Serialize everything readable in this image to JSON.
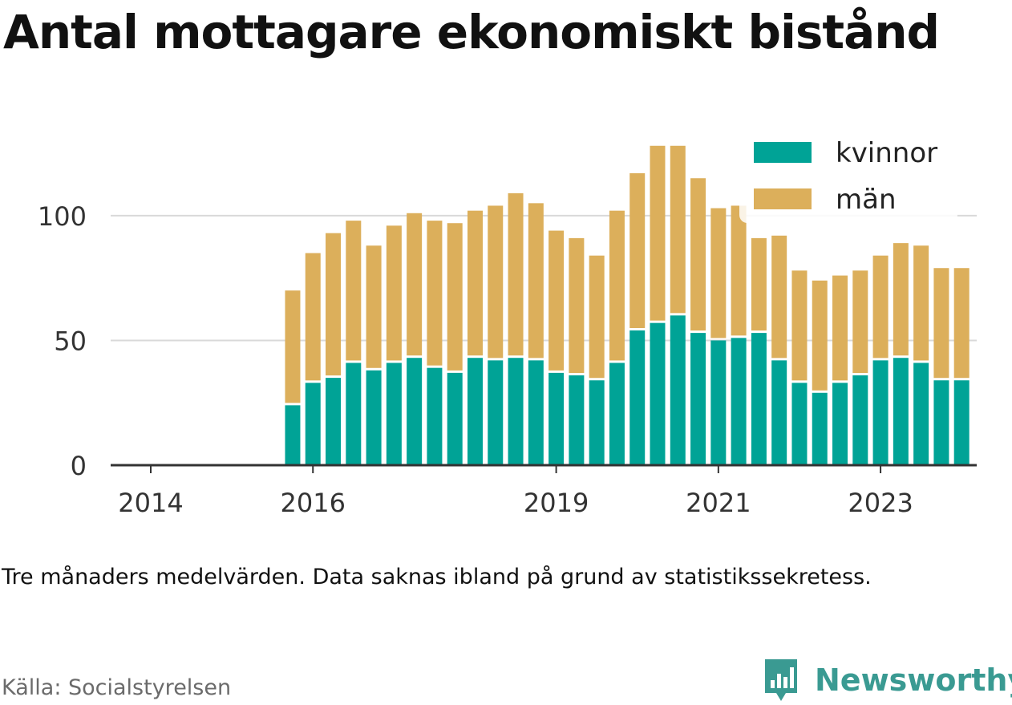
{
  "title": "Antal mottagare ekonomiskt bistånd",
  "note": "Tre månaders medelvärden. Data saknas ibland på grund av statistikssekretess.",
  "source": "Källa: Socialstyrelsen",
  "brand": {
    "name": "Newsworthy",
    "icon": "newsworthy-logo-icon",
    "color": "#3a9a92"
  },
  "colors": {
    "kvinnor": "#00a396",
    "man": "#dcaf5b",
    "axis": "#333333",
    "grid": "#d9d9d9"
  },
  "chart_data": {
    "type": "bar",
    "stacked": true,
    "x_unit": "quarter",
    "x": [
      "2015-Q4",
      "2016-Q1",
      "2016-Q2",
      "2016-Q3",
      "2016-Q4",
      "2017-Q1",
      "2017-Q2",
      "2017-Q3",
      "2017-Q4",
      "2018-Q1",
      "2018-Q2",
      "2018-Q3",
      "2018-Q4",
      "2019-Q1",
      "2019-Q2",
      "2019-Q3",
      "2019-Q4",
      "2020-Q1",
      "2020-Q2",
      "2020-Q3",
      "2020-Q4",
      "2021-Q1",
      "2021-Q2",
      "2021-Q3",
      "2021-Q4",
      "2022-Q1",
      "2022-Q2",
      "2022-Q3",
      "2022-Q4",
      "2023-Q1",
      "2023-Q2",
      "2023-Q3",
      "2023-Q4",
      "2024-Q1"
    ],
    "series": [
      {
        "name": "kvinnor",
        "values": [
          24,
          33,
          35,
          41,
          38,
          41,
          43,
          39,
          37,
          43,
          42,
          43,
          42,
          37,
          36,
          34,
          41,
          54,
          57,
          60,
          53,
          50,
          51,
          53,
          42,
          33,
          29,
          33,
          36,
          42,
          43,
          41,
          34,
          34
        ]
      },
      {
        "name": "män",
        "values": [
          46,
          52,
          58,
          57,
          50,
          55,
          58,
          59,
          60,
          59,
          62,
          66,
          63,
          57,
          55,
          50,
          61,
          63,
          71,
          68,
          62,
          53,
          53,
          38,
          50,
          45,
          45,
          43,
          42,
          42,
          46,
          47,
          45,
          45
        ]
      }
    ],
    "xticks": [
      "2014",
      "2016",
      "2019",
      "2021",
      "2023"
    ],
    "yticks": [
      0,
      50,
      100
    ],
    "ylim": [
      0,
      135
    ],
    "xlim": [
      "2014-Q1",
      "2024-Q2"
    ],
    "legend": {
      "position": "top-right",
      "entries": [
        "kvinnor",
        "män"
      ]
    },
    "grid": "horizontal"
  }
}
